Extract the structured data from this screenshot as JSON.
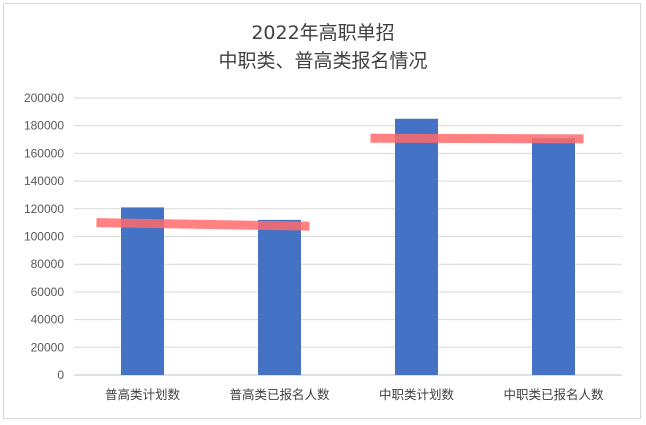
{
  "chart_data": {
    "type": "bar",
    "title": "2022年高职单招",
    "subtitle": "中职类、普高类报名情况",
    "categories": [
      "普高类计划数",
      "普高类已报名人数",
      "中职类计划数",
      "中职类已报名人数"
    ],
    "values": [
      121000,
      112000,
      185000,
      171000
    ],
    "ylim": [
      0,
      200000
    ],
    "yticks": [
      0,
      20000,
      40000,
      60000,
      80000,
      100000,
      120000,
      140000,
      160000,
      180000,
      200000
    ],
    "grid": true,
    "bar_color": "#4472c4",
    "annotations": [
      {
        "type": "highlight-line",
        "color": "#ff6b6b",
        "from_category": 0,
        "to_category": 1,
        "y_start": 110000,
        "y_end": 107500
      },
      {
        "type": "highlight-line",
        "color": "#ff6b6b",
        "from_category": 2,
        "to_category": 3,
        "y_start": 171000,
        "y_end": 170500
      }
    ]
  }
}
